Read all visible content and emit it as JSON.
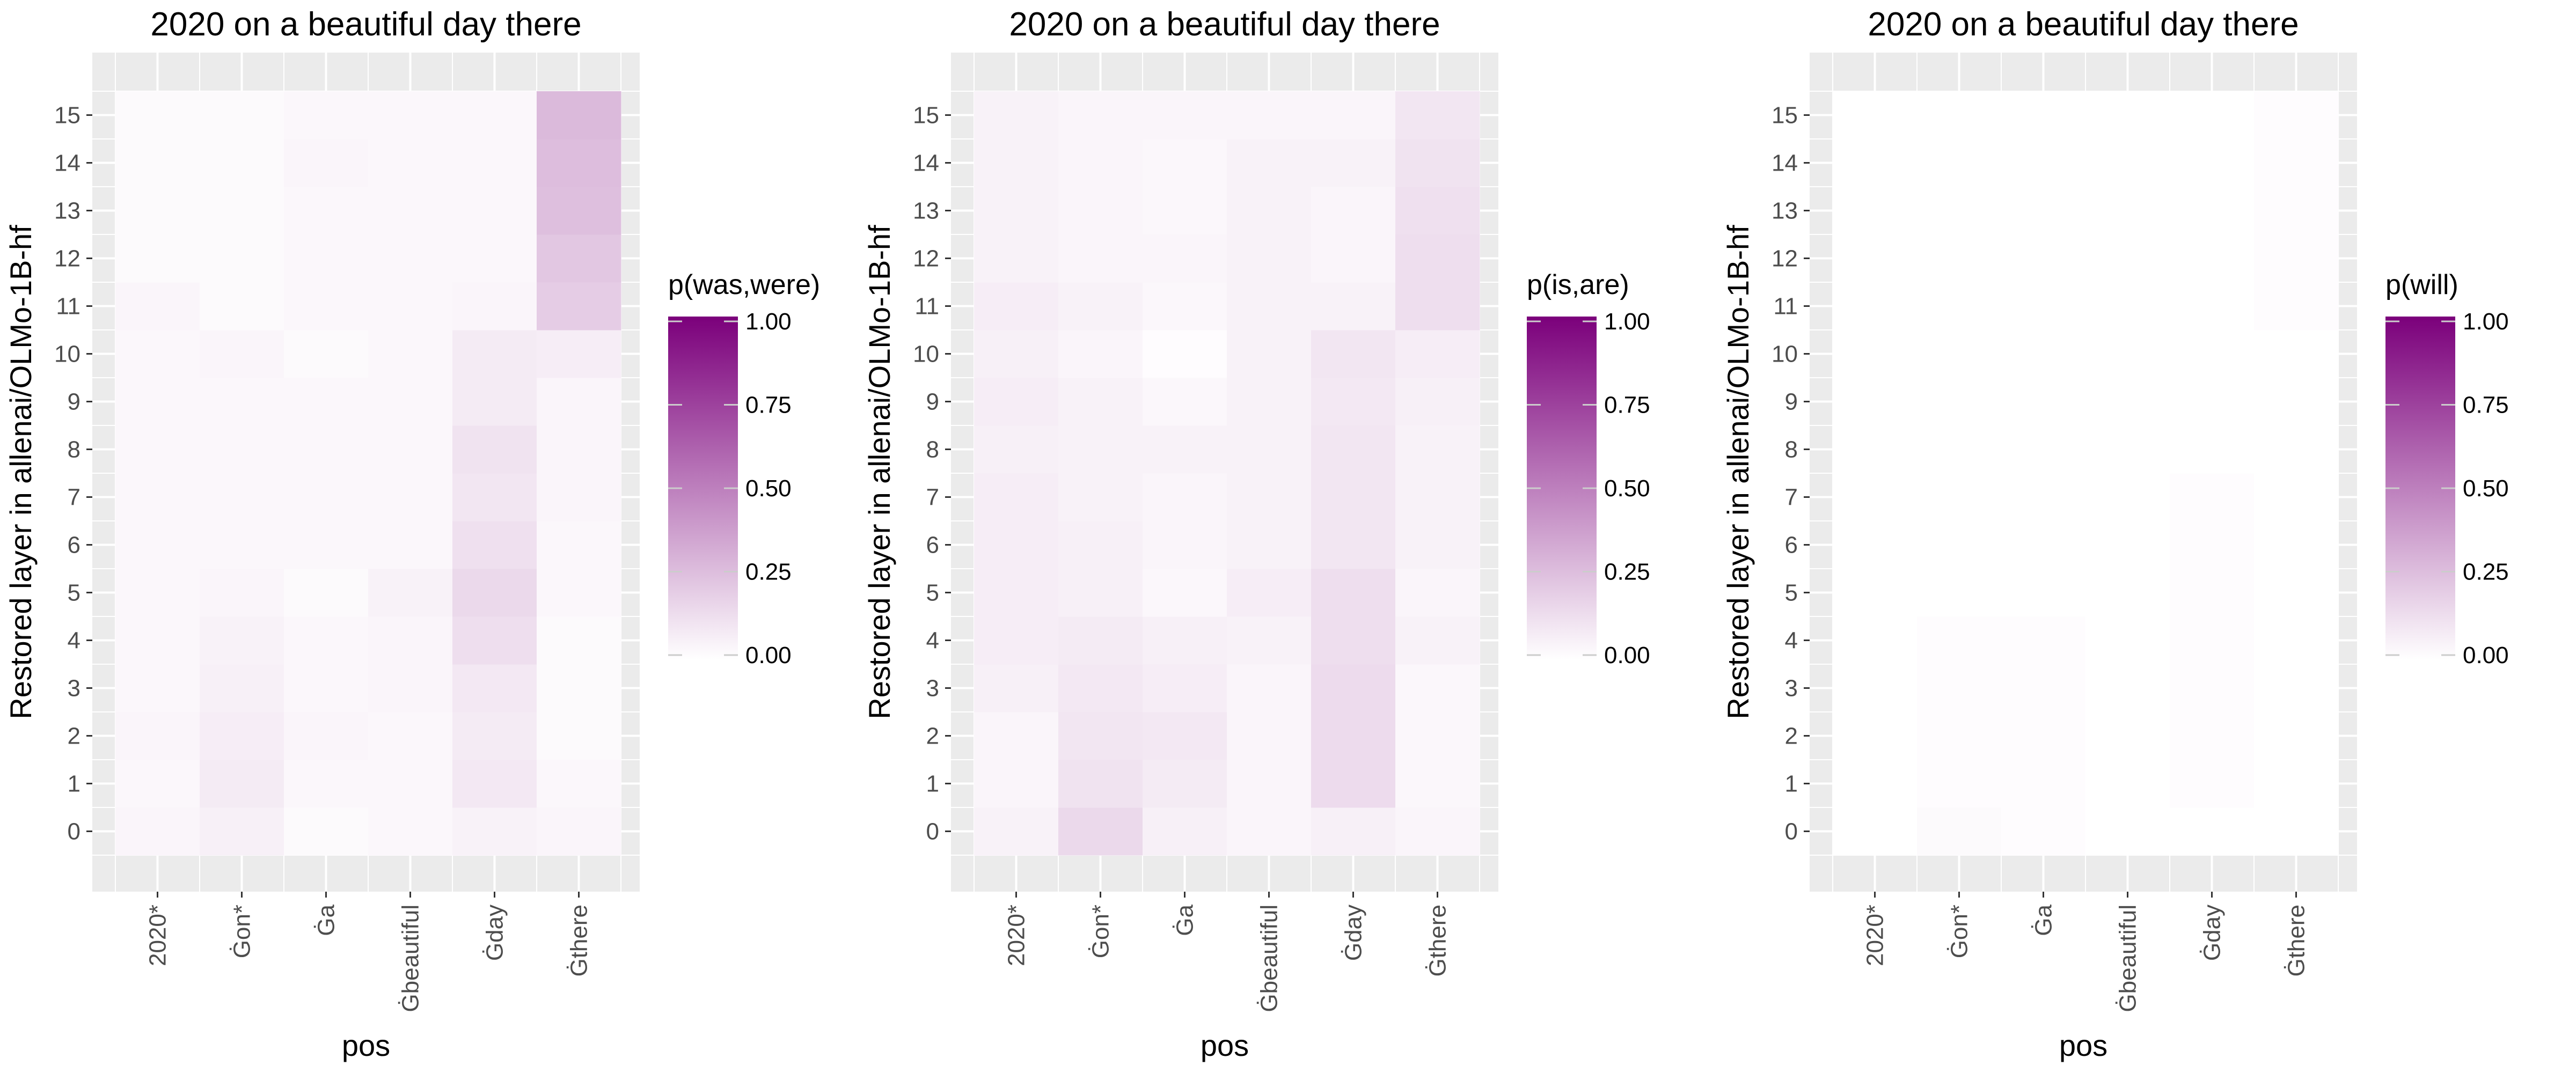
{
  "chart_data": [
    {
      "type": "heatmap",
      "title": "2020 on a beautiful day there",
      "xlabel": "pos",
      "ylabel": "Restored layer in allenai/OLMo-1B-hf",
      "x_categories": [
        "2020*",
        "Ġon*",
        "Ġa",
        "Ġbeautiful",
        "Ġday",
        "Ġthere"
      ],
      "y_categories": [
        "0",
        "1",
        "2",
        "3",
        "4",
        "5",
        "6",
        "7",
        "8",
        "9",
        "10",
        "11",
        "12",
        "13",
        "14",
        "15"
      ],
      "legend_title": "p(was,were)",
      "legend_ticks": [
        "0.00",
        "0.25",
        "0.50",
        "0.75",
        "1.00"
      ],
      "color_range": [
        0,
        1
      ],
      "color_low": "#ffffff",
      "color_high": "#7b007b",
      "values": [
        [
          0.04,
          0.03,
          0.04,
          0.03,
          0.03,
          0.03,
          0.03,
          0.03,
          0.03,
          0.03,
          0.03,
          0.04,
          0.02,
          0.02,
          0.02,
          0.02
        ],
        [
          0.06,
          0.08,
          0.07,
          0.06,
          0.05,
          0.04,
          0.03,
          0.03,
          0.03,
          0.03,
          0.04,
          0.02,
          0.02,
          0.02,
          0.02,
          0.02
        ],
        [
          0.02,
          0.03,
          0.04,
          0.03,
          0.03,
          0.02,
          0.03,
          0.03,
          0.03,
          0.03,
          0.02,
          0.03,
          0.03,
          0.03,
          0.04,
          0.03
        ],
        [
          0.03,
          0.03,
          0.03,
          0.04,
          0.04,
          0.05,
          0.03,
          0.03,
          0.03,
          0.03,
          0.03,
          0.03,
          0.03,
          0.03,
          0.03,
          0.03
        ],
        [
          0.05,
          0.09,
          0.08,
          0.09,
          0.13,
          0.15,
          0.12,
          0.1,
          0.11,
          0.08,
          0.08,
          0.04,
          0.03,
          0.03,
          0.03,
          0.03
        ],
        [
          0.04,
          0.03,
          0.02,
          0.02,
          0.02,
          0.03,
          0.03,
          0.04,
          0.04,
          0.04,
          0.07,
          0.2,
          0.22,
          0.25,
          0.26,
          0.27
        ]
      ]
    },
    {
      "type": "heatmap",
      "title": "2020 on a beautiful day there",
      "xlabel": "pos",
      "ylabel": "Restored layer in allenai/OLMo-1B-hf",
      "x_categories": [
        "2020*",
        "Ġon*",
        "Ġa",
        "Ġbeautiful",
        "Ġday",
        "Ġthere"
      ],
      "y_categories": [
        "0",
        "1",
        "2",
        "3",
        "4",
        "5",
        "6",
        "7",
        "8",
        "9",
        "10",
        "11",
        "12",
        "13",
        "14",
        "15"
      ],
      "legend_title": "p(is,are)",
      "legend_ticks": [
        "0.00",
        "0.25",
        "0.50",
        "0.75",
        "1.00"
      ],
      "color_range": [
        0,
        1
      ],
      "color_low": "#ffffff",
      "color_high": "#7b007b",
      "values": [
        [
          0.05,
          0.04,
          0.04,
          0.06,
          0.07,
          0.07,
          0.07,
          0.07,
          0.06,
          0.07,
          0.06,
          0.07,
          0.05,
          0.05,
          0.05,
          0.05
        ],
        [
          0.15,
          0.11,
          0.1,
          0.09,
          0.08,
          0.06,
          0.06,
          0.05,
          0.05,
          0.05,
          0.04,
          0.05,
          0.04,
          0.04,
          0.04,
          0.04
        ],
        [
          0.06,
          0.08,
          0.09,
          0.07,
          0.06,
          0.03,
          0.04,
          0.04,
          0.05,
          0.03,
          0.01,
          0.03,
          0.04,
          0.03,
          0.03,
          0.04
        ],
        [
          0.04,
          0.04,
          0.04,
          0.04,
          0.05,
          0.07,
          0.05,
          0.05,
          0.05,
          0.05,
          0.05,
          0.05,
          0.05,
          0.05,
          0.05,
          0.04
        ],
        [
          0.06,
          0.14,
          0.14,
          0.14,
          0.13,
          0.13,
          0.1,
          0.1,
          0.1,
          0.09,
          0.1,
          0.05,
          0.04,
          0.04,
          0.05,
          0.04
        ],
        [
          0.04,
          0.03,
          0.03,
          0.03,
          0.05,
          0.04,
          0.05,
          0.05,
          0.05,
          0.06,
          0.07,
          0.13,
          0.13,
          0.12,
          0.11,
          0.1
        ]
      ]
    },
    {
      "type": "heatmap",
      "title": "2020 on a beautiful day there",
      "xlabel": "pos",
      "ylabel": "Restored layer in allenai/OLMo-1B-hf",
      "x_categories": [
        "2020*",
        "Ġon*",
        "Ġa",
        "Ġbeautiful",
        "Ġday",
        "Ġthere"
      ],
      "y_categories": [
        "0",
        "1",
        "2",
        "3",
        "4",
        "5",
        "6",
        "7",
        "8",
        "9",
        "10",
        "11",
        "12",
        "13",
        "14",
        "15"
      ],
      "legend_title": "p(will)",
      "legend_ticks": [
        "0.00",
        "0.25",
        "0.50",
        "0.75",
        "1.00"
      ],
      "color_range": [
        0,
        1
      ],
      "color_low": "#ffffff",
      "color_high": "#7b007b",
      "values": [
        [
          0.0,
          0.0,
          0.0,
          0.0,
          0.0,
          0.0,
          0.0,
          0.0,
          0.0,
          0.0,
          0.0,
          0.0,
          0.0,
          0.0,
          0.0,
          0.0
        ],
        [
          0.02,
          0.01,
          0.01,
          0.01,
          0.01,
          0.0,
          0.0,
          0.0,
          0.0,
          0.0,
          0.0,
          0.0,
          0.0,
          0.0,
          0.0,
          0.0
        ],
        [
          0.01,
          0.01,
          0.01,
          0.01,
          0.01,
          0.0,
          0.0,
          0.0,
          0.0,
          0.0,
          0.0,
          0.0,
          0.0,
          0.0,
          0.0,
          0.0
        ],
        [
          0.0,
          0.0,
          0.0,
          0.0,
          0.0,
          0.0,
          0.0,
          0.0,
          0.0,
          0.0,
          0.0,
          0.0,
          0.0,
          0.0,
          0.0,
          0.0
        ],
        [
          0.0,
          0.01,
          0.01,
          0.01,
          0.01,
          0.01,
          0.01,
          0.01,
          0.0,
          0.0,
          0.0,
          0.0,
          0.0,
          0.0,
          0.0,
          0.0
        ],
        [
          0.0,
          0.0,
          0.0,
          0.0,
          0.0,
          0.0,
          0.0,
          0.0,
          0.0,
          0.0,
          0.0,
          0.01,
          0.01,
          0.01,
          0.01,
          0.01
        ]
      ]
    }
  ]
}
